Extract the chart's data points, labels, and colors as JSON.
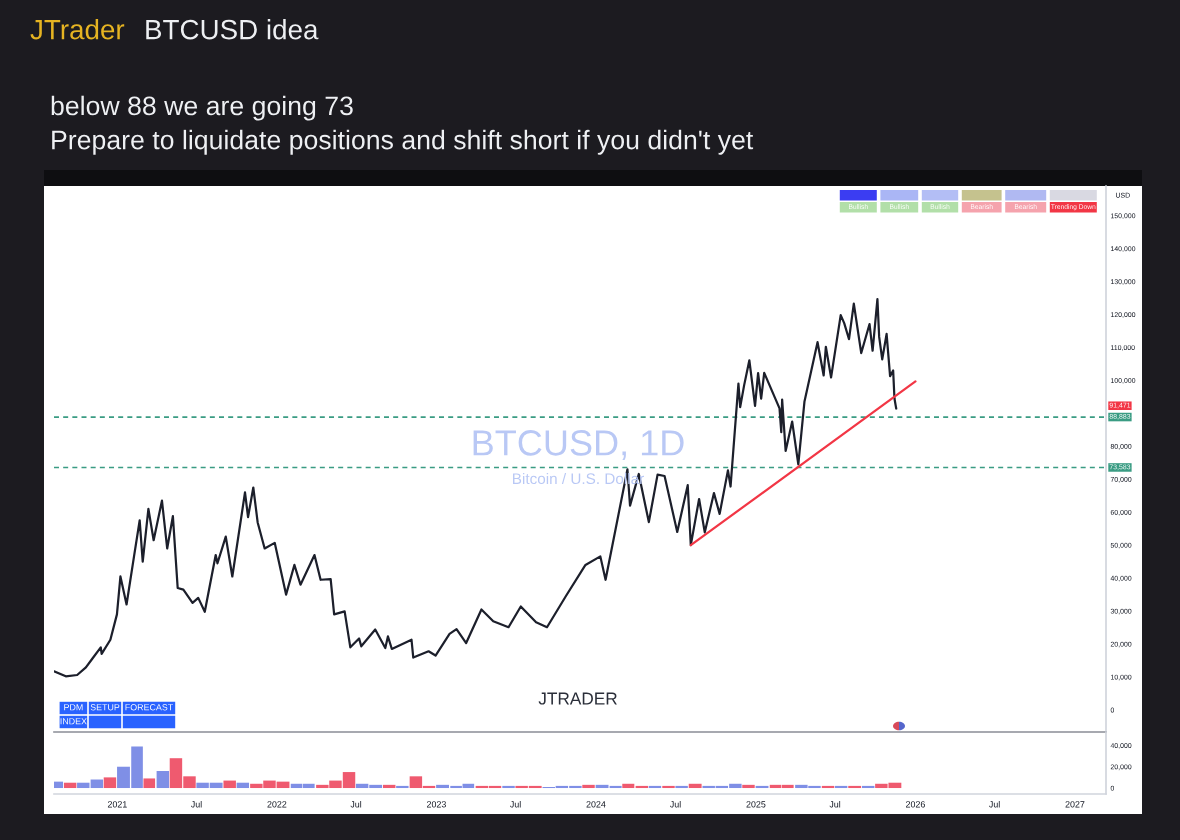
{
  "chart_data": [
    {
      "type": "line",
      "title": "BTCUSD idea",
      "subtitle": "below 88 we are going 73\nPrepare to liquidate positions and shift short if you didn't yet",
      "ylabel": "USD",
      "x": [
        "2020-08-09",
        "2020-09-05",
        "2020-10-01",
        "2020-10-21",
        "2020-11-05",
        "2020-11-24",
        "2020-11-26",
        "2020-12-16",
        "2020-12-31",
        "2021-01-08",
        "2021-01-22",
        "2021-02-08",
        "2021-02-21",
        "2021-02-28",
        "2021-03-13",
        "2021-03-25",
        "2021-04-13",
        "2021-04-25",
        "2021-05-08",
        "2021-05-19",
        "2021-06-01",
        "2021-06-22",
        "2021-07-05",
        "2021-07-20",
        "2021-08-14",
        "2021-08-18",
        "2021-09-06",
        "2021-09-21",
        "2021-10-20",
        "2021-10-27",
        "2021-11-08",
        "2021-11-18",
        "2021-12-04",
        "2021-12-27",
        "2022-01-22",
        "2022-02-10",
        "2022-02-24",
        "2022-03-28",
        "2022-04-11",
        "2022-05-04",
        "2022-05-12",
        "2022-06-05",
        "2022-06-18",
        "2022-07-08",
        "2022-07-13",
        "2022-08-14",
        "2022-09-06",
        "2022-09-12",
        "2022-09-21",
        "2022-11-05",
        "2022-11-09",
        "2022-12-14",
        "2022-12-30",
        "2023-01-31",
        "2023-02-16",
        "2023-03-10",
        "2023-04-14",
        "2023-05-11",
        "2023-06-15",
        "2023-07-13",
        "2023-08-17",
        "2023-09-11",
        "2023-10-24",
        "2023-12-08",
        "2024-01-11",
        "2024-01-23",
        "2024-03-13",
        "2024-03-19",
        "2024-04-08",
        "2024-05-01",
        "2024-05-21",
        "2024-06-06",
        "2024-07-05",
        "2024-07-29",
        "2024-08-05",
        "2024-08-24",
        "2024-09-06",
        "2024-09-27",
        "2024-10-10",
        "2024-10-29",
        "2024-11-04",
        "2024-11-22",
        "2024-11-26",
        "2024-12-05",
        "2024-12-17",
        "2024-12-30",
        "2025-01-06",
        "2025-01-13",
        "2025-01-20",
        "2025-02-24",
        "2025-02-28",
        "2025-03-02",
        "2025-03-10",
        "2025-03-25",
        "2025-04-08",
        "2025-04-22",
        "2025-05-22",
        "2025-06-05",
        "2025-06-10",
        "2025-06-22",
        "2025-07-14",
        "2025-07-22",
        "2025-08-02",
        "2025-08-13",
        "2025-08-30",
        "2025-09-18",
        "2025-09-25",
        "2025-10-06",
        "2025-10-10",
        "2025-10-17",
        "2025-10-27",
        "2025-11-04",
        "2025-11-11",
        "2025-11-14",
        "2025-11-17",
        "2025-11-18"
      ],
      "series": [
        {
          "color": "#1c1f2b",
          "values": [
            11700,
            10200,
            10600,
            12900,
            15600,
            19000,
            17000,
            21300,
            29000,
            40500,
            32000,
            46500,
            57500,
            45000,
            61000,
            51500,
            63500,
            49000,
            58800,
            37000,
            36500,
            32500,
            34000,
            29800,
            47000,
            44500,
            52600,
            40500,
            66000,
            58500,
            67500,
            56900,
            49000,
            50700,
            35000,
            44000,
            38000,
            47000,
            39500,
            39700,
            29000,
            29900,
            19000,
            21700,
            19300,
            24400,
            18800,
            22300,
            18500,
            21300,
            15900,
            17800,
            16500,
            23100,
            24500,
            20300,
            30500,
            26900,
            25100,
            31400,
            26600,
            25100,
            34500,
            44000,
            46600,
            39500,
            73000,
            62000,
            71600,
            57000,
            71400,
            71000,
            54000,
            68200,
            50000,
            64000,
            53900,
            65800,
            59500,
            72700,
            67800,
            99000,
            91900,
            98500,
            106100,
            92300,
            102200,
            94500,
            102300,
            91500,
            84300,
            94200,
            78600,
            87500,
            74500,
            93500,
            111600,
            101500,
            110200,
            100900,
            119800,
            117400,
            112500,
            123300,
            108300,
            117100,
            109000,
            124700,
            113200,
            106400,
            114100,
            101300,
            103000,
            94500,
            92200,
            91471
          ]
        },
        {
          "type": "line",
          "color": "#f23645",
          "x": [
            "2024-08-05",
            "2026-01-01"
          ],
          "values": [
            50000,
            99700
          ]
        }
      ],
      "xlim": [
        "2020-08-09",
        "2027-03-13"
      ],
      "ylim": [
        -6700,
        159000
      ],
      "yticks": [
        0,
        {
          "value": 10000,
          "label": "10,000"
        },
        {
          "value": 20000,
          "label": "20,000"
        },
        {
          "value": 30000,
          "label": "30,000"
        },
        {
          "value": 40000,
          "label": "40,000"
        },
        {
          "value": 50000,
          "label": "50,000"
        },
        {
          "value": 60000,
          "label": "60,000"
        },
        {
          "value": 70000,
          "label": "70,000"
        },
        {
          "value": 80000,
          "label": "80,000"
        },
        {
          "value": 100000,
          "label": "100,000"
        },
        {
          "value": 110000,
          "label": "110,000"
        },
        {
          "value": 120000,
          "label": "120,000"
        },
        {
          "value": 130000,
          "label": "130,000"
        },
        {
          "value": 140000,
          "label": "140,000"
        },
        {
          "value": 150000,
          "label": "150,000"
        }
      ],
      "ref_lines": [
        {
          "axis": "y",
          "value": 88883,
          "label": "88,883",
          "color": "#3a9c83",
          "line_style": "dashed"
        },
        {
          "axis": "y",
          "value": 73583,
          "label": "73,583",
          "color": "#3a9c83",
          "line_style": "dashed"
        }
      ],
      "annotations": [
        "JTrader",
        "BTCUSD, 1D",
        "Bitcoin / U.S. Dollar",
        "JTRADER",
        "Bullish",
        "Bullish",
        "Bullish",
        "Bearish",
        "Bearish",
        "Trending Down",
        "PDM",
        "SETUP",
        "FORECAST",
        "INDEX",
        "91,471"
      ],
      "tick_labels": "y"
    },
    {
      "type": "bar",
      "x": [
        "2020-08-15",
        "2020-09-15",
        "2020-10-15",
        "2020-11-15",
        "2020-12-15",
        "2021-01-15",
        "2021-02-15",
        "2021-03-15",
        "2021-04-15",
        "2021-05-15",
        "2021-06-15",
        "2021-07-15",
        "2021-08-15",
        "2021-09-15",
        "2021-10-15",
        "2021-11-15",
        "2021-12-15",
        "2022-01-15",
        "2022-02-15",
        "2022-03-15",
        "2022-04-15",
        "2022-05-15",
        "2022-06-15",
        "2022-07-15",
        "2022-08-15",
        "2022-09-15",
        "2022-10-15",
        "2022-11-15",
        "2022-12-15",
        "2023-01-15",
        "2023-02-15",
        "2023-03-15",
        "2023-04-15",
        "2023-05-15",
        "2023-06-15",
        "2023-07-15",
        "2023-08-15",
        "2023-09-15",
        "2023-10-15",
        "2023-11-15",
        "2023-12-15",
        "2024-01-15",
        "2024-02-15",
        "2024-03-15",
        "2024-04-15",
        "2024-05-15",
        "2024-06-15",
        "2024-07-15",
        "2024-08-15",
        "2024-09-15",
        "2024-10-15",
        "2024-11-15",
        "2024-12-15",
        "2025-01-15",
        "2025-02-15",
        "2025-03-15",
        "2025-04-15",
        "2025-05-15",
        "2025-06-15",
        "2025-07-15",
        "2025-08-15",
        "2025-09-15",
        "2025-10-15",
        "2025-11-15"
      ],
      "values": [
        6000,
        5000,
        5000,
        8000,
        10000,
        20000,
        39000,
        9000,
        16000,
        28000,
        11000,
        5000,
        5000,
        7000,
        5000,
        4000,
        7000,
        6000,
        4000,
        4000,
        3000,
        7000,
        15000,
        4000,
        3000,
        3000,
        2000,
        11000,
        2000,
        3000,
        2000,
        4000,
        2000,
        2000,
        2000,
        2000,
        2000,
        1000,
        2000,
        2000,
        3000,
        3000,
        2000,
        4000,
        2000,
        2000,
        2000,
        2000,
        4000,
        2000,
        2000,
        4000,
        3000,
        2000,
        3000,
        3000,
        3000,
        2000,
        2000,
        2000,
        2000,
        2000,
        4000,
        5000
      ],
      "colors": [
        "#7f8fe6",
        "#ef5a6f",
        "#7f8fe6",
        "#7f8fe6",
        "#ef5a6f",
        "#7f8fe6",
        "#7f8fe6",
        "#ef5a6f",
        "#7f8fe6",
        "#ef5a6f",
        "#ef5a6f",
        "#7f8fe6",
        "#7f8fe6",
        "#ef5a6f",
        "#7f8fe6",
        "#ef5a6f",
        "#ef5a6f",
        "#ef5a6f",
        "#7f8fe6",
        "#7f8fe6",
        "#ef5a6f",
        "#ef5a6f",
        "#ef5a6f",
        "#7f8fe6",
        "#7f8fe6",
        "#ef5a6f",
        "#7f8fe6",
        "#ef5a6f",
        "#ef5a6f",
        "#7f8fe6",
        "#7f8fe6",
        "#7f8fe6",
        "#ef5a6f",
        "#ef5a6f",
        "#7f8fe6",
        "#ef5a6f",
        "#ef5a6f",
        "#7f8fe6",
        "#7f8fe6",
        "#7f8fe6",
        "#ef5a6f",
        "#7f8fe6",
        "#7f8fe6",
        "#ef5a6f",
        "#ef5a6f",
        "#7f8fe6",
        "#ef5a6f",
        "#7f8fe6",
        "#ef5a6f",
        "#7f8fe6",
        "#7f8fe6",
        "#7f8fe6",
        "#ef5a6f",
        "#7f8fe6",
        "#ef5a6f",
        "#ef5a6f",
        "#7f8fe6",
        "#7f8fe6",
        "#ef5a6f",
        "#7f8fe6",
        "#ef5a6f",
        "#7f8fe6",
        "#ef5a6f",
        "#ef5a6f"
      ],
      "xlim": [
        "2020-08-09",
        "2027-03-13"
      ],
      "ylim": [
        -5600,
        52600
      ],
      "xticks": [
        {
          "value": "2021-01-01",
          "label": "2021"
        },
        {
          "value": "2021-07-01",
          "label": "Jul"
        },
        {
          "value": "2022-01-01",
          "label": "2022"
        },
        {
          "value": "2022-07-01",
          "label": "Jul"
        },
        {
          "value": "2023-01-01",
          "label": "2023"
        },
        {
          "value": "2023-07-01",
          "label": "Jul"
        },
        {
          "value": "2024-01-01",
          "label": "2024"
        },
        {
          "value": "2024-07-01",
          "label": "Jul"
        },
        {
          "value": "2025-01-01",
          "label": "2025"
        },
        {
          "value": "2025-07-01",
          "label": "Jul"
        },
        {
          "value": "2026-01-01",
          "label": "2026"
        },
        {
          "value": "2026-07-01",
          "label": "Jul"
        },
        {
          "value": "2027-01-01",
          "label": "2027"
        }
      ],
      "yticks": [
        0,
        {
          "value": 20000,
          "label": "20,000"
        },
        {
          "value": 40000,
          "label": "40,000"
        }
      ]
    }
  ]
}
